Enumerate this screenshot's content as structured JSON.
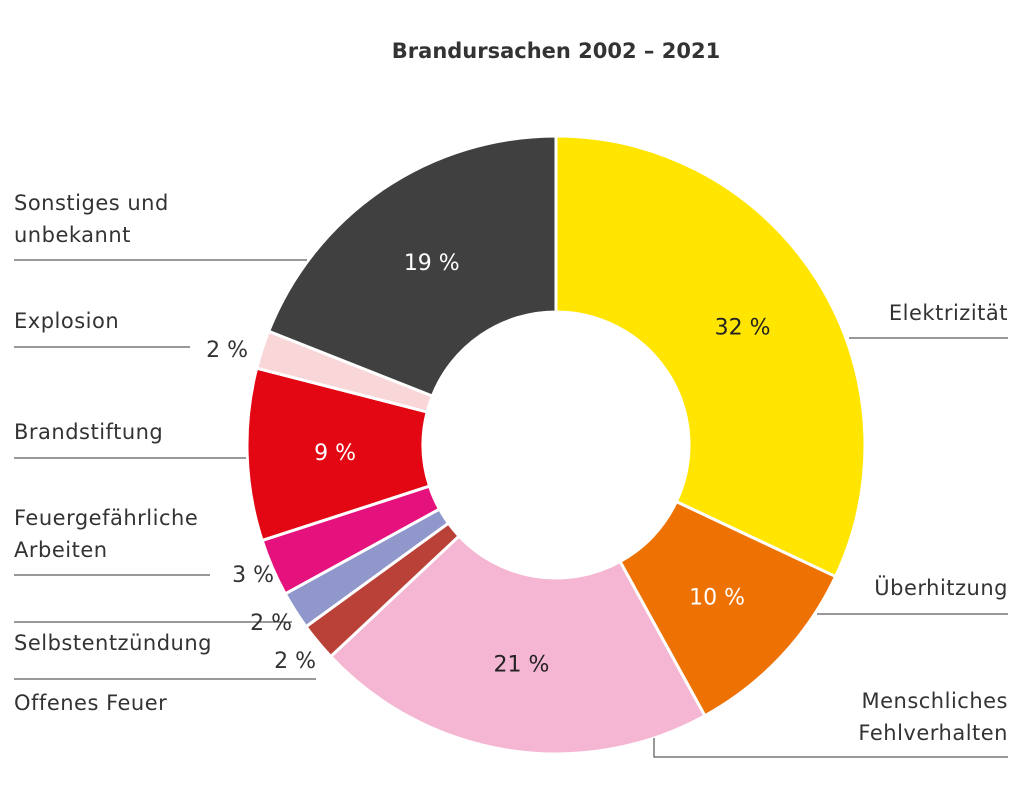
{
  "chart_data": {
    "type": "pie",
    "title": "Brandursachen 2002 – 2021",
    "unit": "%",
    "slices": [
      {
        "label": "Elektrizität",
        "value": 32,
        "value_text": "32 %",
        "color": "#FFE500",
        "text_color": "#222222"
      },
      {
        "label": "Überhitzung",
        "value": 10,
        "value_text": "10 %",
        "color": "#EE7203",
        "text_color": "#ffffff"
      },
      {
        "label": "Menschliches Fehlverhalten",
        "value": 21,
        "value_text": "21 %",
        "color": "#F4B6D2",
        "text_color": "#222222"
      },
      {
        "label": "Offenes Feuer",
        "value": 2,
        "value_text": "2 %",
        "color": "#B94138",
        "text_color": "#333333"
      },
      {
        "label": "Selbstentzündung",
        "value": 2,
        "value_text": "2 %",
        "color": "#8F97CB",
        "text_color": "#333333"
      },
      {
        "label": "Feuergefährliche Arbeiten",
        "value": 3,
        "value_text": "3 %",
        "color": "#E5127D",
        "text_color": "#333333"
      },
      {
        "label": "Brandstiftung",
        "value": 9,
        "value_text": "9 %",
        "color": "#E30613",
        "text_color": "#ffffff"
      },
      {
        "label": "Explosion",
        "value": 2,
        "value_text": "2 %",
        "color": "#F9D7D9",
        "text_color": "#333333"
      },
      {
        "label": "Sonstiges und unbekannt",
        "value": 19,
        "value_text": "19 %",
        "color": "#404040",
        "text_color": "#ffffff"
      }
    ]
  }
}
